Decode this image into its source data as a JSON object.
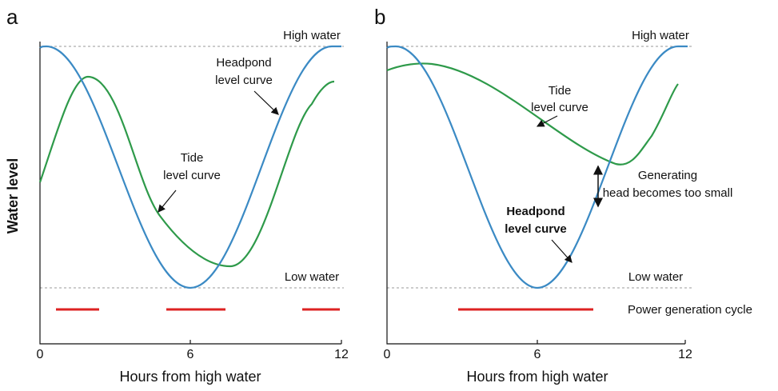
{
  "y_label": "Water level",
  "panels": [
    {
      "label": "a",
      "high_water": "High water",
      "low_water": "Low water",
      "headpond": [
        "Headpond",
        "level curve"
      ],
      "tide": [
        "Tide",
        "level curve"
      ],
      "x_label": "Hours from high water",
      "x_ticks": [
        0,
        6,
        12
      ]
    },
    {
      "label": "b",
      "high_water": "High water",
      "low_water": "Low water",
      "headpond": [
        "Headpond",
        "level curve"
      ],
      "tide": [
        "Tide",
        "level curve"
      ],
      "head_note": [
        "Generating",
        "head becomes too small"
      ],
      "cycle": "Power generation cycle",
      "x_label": "Hours from high water",
      "x_ticks": [
        0,
        6,
        12
      ]
    }
  ]
}
